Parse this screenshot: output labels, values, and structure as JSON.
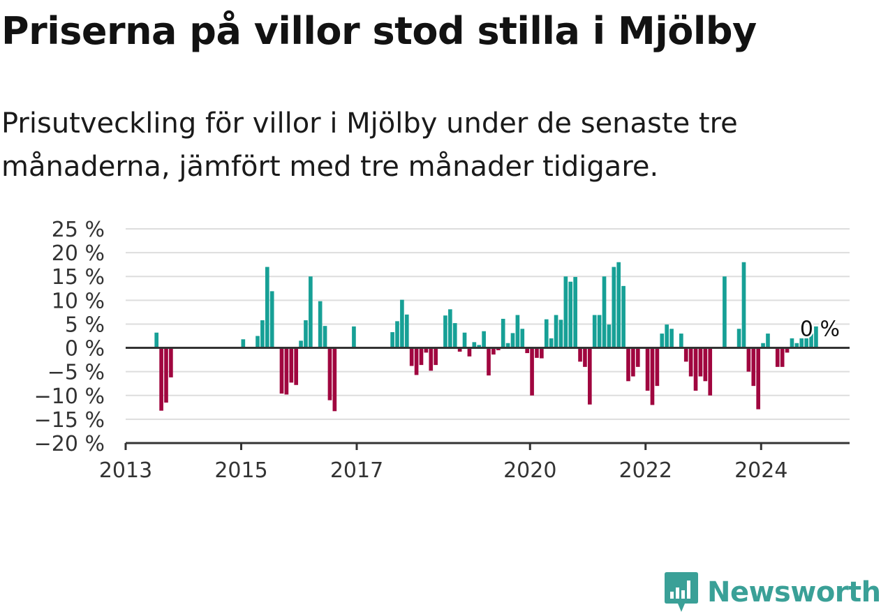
{
  "title": "Priserna på villor stod stilla i Mjölby",
  "subtitle": "Prisutveckling för villor i Mjölby under de senaste tre månaderna, jämfört med tre månader tidigare.",
  "brand": {
    "name": "Newsworthy",
    "icon": "newsworthy-logo-icon"
  },
  "colors": {
    "positive": "#17a096",
    "negative": "#a0063f",
    "grid": "#dddddd",
    "axis": "#333333",
    "brand": "#3aa097"
  },
  "chart_data": {
    "type": "bar",
    "title": "Priserna på villor stod stilla i Mjölby",
    "xlabel": "",
    "ylabel": "",
    "ylim": [
      -20,
      25
    ],
    "y_ticks": [
      25,
      20,
      15,
      10,
      5,
      0,
      -5,
      -10,
      -15,
      -20
    ],
    "y_tick_labels": [
      "25 %",
      "20 %",
      "15 %",
      "10 %",
      "5 %",
      "0 %",
      "−5 %",
      "−10 %",
      "−15 %",
      "−20 %"
    ],
    "x_ticks": [
      {
        "label": "2013",
        "date": "2013-01"
      },
      {
        "label": "2015",
        "date": "2015-01"
      },
      {
        "label": "2017",
        "date": "2017-01"
      },
      {
        "label": "2020",
        "date": "2020-01"
      },
      {
        "label": "2022",
        "date": "2022-01"
      },
      {
        "label": "2024",
        "date": "2024-01"
      }
    ],
    "annotation": {
      "label": "0 %",
      "date": "2025-01"
    },
    "series": [
      {
        "values": [
          {
            "date": "2013-07",
            "value": 3.2
          },
          {
            "date": "2013-08",
            "value": -13.2
          },
          {
            "date": "2013-09",
            "value": -11.5
          },
          {
            "date": "2013-10",
            "value": -6.2
          },
          {
            "date": "2015-01",
            "value": 1.8
          },
          {
            "date": "2015-04",
            "value": 2.5
          },
          {
            "date": "2015-05",
            "value": 5.8
          },
          {
            "date": "2015-06",
            "value": 17.0
          },
          {
            "date": "2015-07",
            "value": 11.9
          },
          {
            "date": "2015-09",
            "value": -9.6
          },
          {
            "date": "2015-10",
            "value": -9.8
          },
          {
            "date": "2015-11",
            "value": -7.3
          },
          {
            "date": "2015-12",
            "value": -7.8
          },
          {
            "date": "2016-01",
            "value": 1.5
          },
          {
            "date": "2016-02",
            "value": 5.8
          },
          {
            "date": "2016-03",
            "value": 15.0
          },
          {
            "date": "2016-05",
            "value": 9.8
          },
          {
            "date": "2016-06",
            "value": 4.6
          },
          {
            "date": "2016-07",
            "value": -11.0
          },
          {
            "date": "2016-08",
            "value": -13.3
          },
          {
            "date": "2016-12",
            "value": 4.5
          },
          {
            "date": "2017-08",
            "value": 3.3
          },
          {
            "date": "2017-09",
            "value": 5.6
          },
          {
            "date": "2017-10",
            "value": 10.1
          },
          {
            "date": "2017-11",
            "value": 7.0
          },
          {
            "date": "2017-12",
            "value": -3.8
          },
          {
            "date": "2018-01",
            "value": -5.7
          },
          {
            "date": "2018-02",
            "value": -3.6
          },
          {
            "date": "2018-03",
            "value": -1.0
          },
          {
            "date": "2018-04",
            "value": -4.8
          },
          {
            "date": "2018-05",
            "value": -3.6
          },
          {
            "date": "2018-07",
            "value": 6.8
          },
          {
            "date": "2018-08",
            "value": 8.1
          },
          {
            "date": "2018-09",
            "value": 5.2
          },
          {
            "date": "2018-10",
            "value": -0.8
          },
          {
            "date": "2018-11",
            "value": 3.2
          },
          {
            "date": "2018-12",
            "value": -1.8
          },
          {
            "date": "2019-01",
            "value": 1.2
          },
          {
            "date": "2019-02",
            "value": 0.6
          },
          {
            "date": "2019-03",
            "value": 3.5
          },
          {
            "date": "2019-04",
            "value": -5.8
          },
          {
            "date": "2019-05",
            "value": -1.4
          },
          {
            "date": "2019-06",
            "value": -0.5
          },
          {
            "date": "2019-07",
            "value": 6.1
          },
          {
            "date": "2019-08",
            "value": 1.0
          },
          {
            "date": "2019-09",
            "value": 3.1
          },
          {
            "date": "2019-10",
            "value": 6.9
          },
          {
            "date": "2019-11",
            "value": 4.0
          },
          {
            "date": "2019-12",
            "value": -1.1
          },
          {
            "date": "2020-01",
            "value": -10.0
          },
          {
            "date": "2020-02",
            "value": -2.1
          },
          {
            "date": "2020-03",
            "value": -2.2
          },
          {
            "date": "2020-04",
            "value": 6.0
          },
          {
            "date": "2020-05",
            "value": 2.0
          },
          {
            "date": "2020-06",
            "value": 6.9
          },
          {
            "date": "2020-07",
            "value": 5.9
          },
          {
            "date": "2020-08",
            "value": 15.0
          },
          {
            "date": "2020-09",
            "value": 13.9
          },
          {
            "date": "2020-10",
            "value": 14.9
          },
          {
            "date": "2020-11",
            "value": -2.9
          },
          {
            "date": "2020-12",
            "value": -4.0
          },
          {
            "date": "2021-01",
            "value": -11.9
          },
          {
            "date": "2021-02",
            "value": 6.9
          },
          {
            "date": "2021-03",
            "value": 6.9
          },
          {
            "date": "2021-04",
            "value": 15.0
          },
          {
            "date": "2021-05",
            "value": 4.9
          },
          {
            "date": "2021-06",
            "value": 17.0
          },
          {
            "date": "2021-07",
            "value": 18.0
          },
          {
            "date": "2021-08",
            "value": 13.0
          },
          {
            "date": "2021-09",
            "value": -7.0
          },
          {
            "date": "2021-10",
            "value": -6.0
          },
          {
            "date": "2021-11",
            "value": -4.0
          },
          {
            "date": "2021-12",
            "value": -0.2
          },
          {
            "date": "2022-01",
            "value": -9.0
          },
          {
            "date": "2022-02",
            "value": -12.0
          },
          {
            "date": "2022-03",
            "value": -8.0
          },
          {
            "date": "2022-04",
            "value": 3.0
          },
          {
            "date": "2022-05",
            "value": 4.9
          },
          {
            "date": "2022-06",
            "value": 4.0
          },
          {
            "date": "2022-08",
            "value": 3.0
          },
          {
            "date": "2022-09",
            "value": -2.9
          },
          {
            "date": "2022-10",
            "value": -6.0
          },
          {
            "date": "2022-11",
            "value": -9.0
          },
          {
            "date": "2022-12",
            "value": -6.0
          },
          {
            "date": "2023-01",
            "value": -7.0
          },
          {
            "date": "2023-02",
            "value": -10.0
          },
          {
            "date": "2023-05",
            "value": 15.0
          },
          {
            "date": "2023-08",
            "value": 4.0
          },
          {
            "date": "2023-09",
            "value": 18.0
          },
          {
            "date": "2023-10",
            "value": -5.0
          },
          {
            "date": "2023-11",
            "value": -8.0
          },
          {
            "date": "2023-12",
            "value": -12.9
          },
          {
            "date": "2024-01",
            "value": 1.0
          },
          {
            "date": "2024-02",
            "value": 3.0
          },
          {
            "date": "2024-04",
            "value": -4.0
          },
          {
            "date": "2024-05",
            "value": -4.0
          },
          {
            "date": "2024-06",
            "value": -1.0
          },
          {
            "date": "2024-07",
            "value": 2.0
          },
          {
            "date": "2024-08",
            "value": 1.0
          },
          {
            "date": "2024-09",
            "value": 2.0
          },
          {
            "date": "2024-10",
            "value": 2.0
          },
          {
            "date": "2024-11",
            "value": 3.0
          },
          {
            "date": "2024-12",
            "value": 4.5
          }
        ]
      }
    ]
  }
}
